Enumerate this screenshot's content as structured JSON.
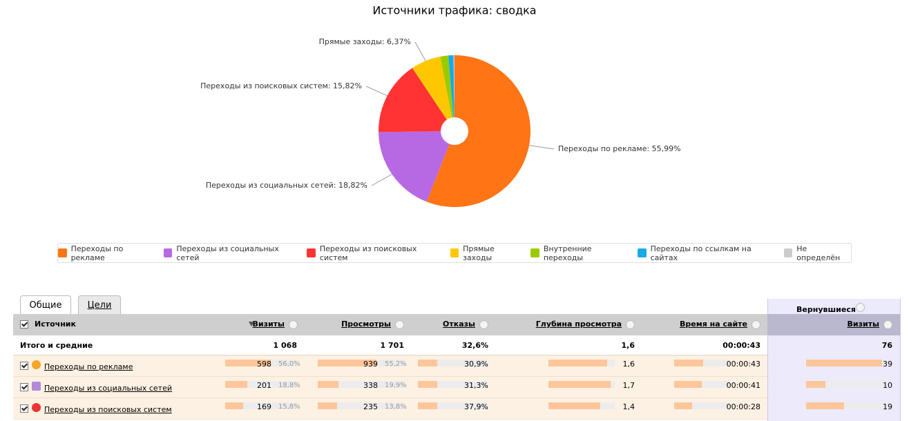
{
  "chart_data": {
    "type": "pie",
    "title": "Источники трафика: сводка",
    "categories": [
      "Переходы по рекламе",
      "Переходы из социальных сетей",
      "Переходы из поисковых систем",
      "Прямые заходы",
      "Внутренние переходы",
      "Переходы по ссылкам на сайтах",
      "Не определён"
    ],
    "values": [
      55.99,
      18.82,
      15.82,
      6.37,
      1.7,
      1.1,
      0.2
    ],
    "value_labels": [
      "55,99%",
      "18,82%",
      "15,82%",
      "6,37%",
      null,
      null,
      null
    ],
    "label_separator": ": ",
    "colors": [
      "#ff7415",
      "#b769e3",
      "#ff3333",
      "#ffc700",
      "#99cc00",
      "#1aa9e6",
      "#cccccc"
    ],
    "legend": true
  },
  "tabs": [
    "Общие",
    "Цели"
  ],
  "table": {
    "group_header": "Вернувшиеся",
    "columns": [
      "Источник",
      "Визиты",
      "Просмотры",
      "Отказы",
      "Глубина просмотра",
      "Время на сайте",
      "Визиты"
    ],
    "total": {
      "label": "Итого и средние",
      "cells": [
        "1 068",
        "1 701",
        "32,6%",
        "1,6",
        "00:00:43",
        "76"
      ]
    },
    "rows": [
      {
        "label": "Переходы по рекламе",
        "visits": "598",
        "visits_share": "56,0%",
        "views": "939",
        "views_share": "55,2%",
        "bounces": "30,9%",
        "depth": "1,6",
        "time": "00:00:43",
        "returning": "39"
      },
      {
        "label": "Переходы из социальных сетей",
        "visits": "201",
        "visits_share": "18,8%",
        "views": "338",
        "views_share": "19,9%",
        "bounces": "31,3%",
        "depth": "1,7",
        "time": "00:00:41",
        "returning": "10"
      },
      {
        "label": "Переходы из поисковых систем",
        "visits": "169",
        "visits_share": "15,8%",
        "views": "235",
        "views_share": "13,8%",
        "bounces": "37,9%",
        "depth": "1,4",
        "time": "00:00:28",
        "returning": "19"
      }
    ]
  }
}
